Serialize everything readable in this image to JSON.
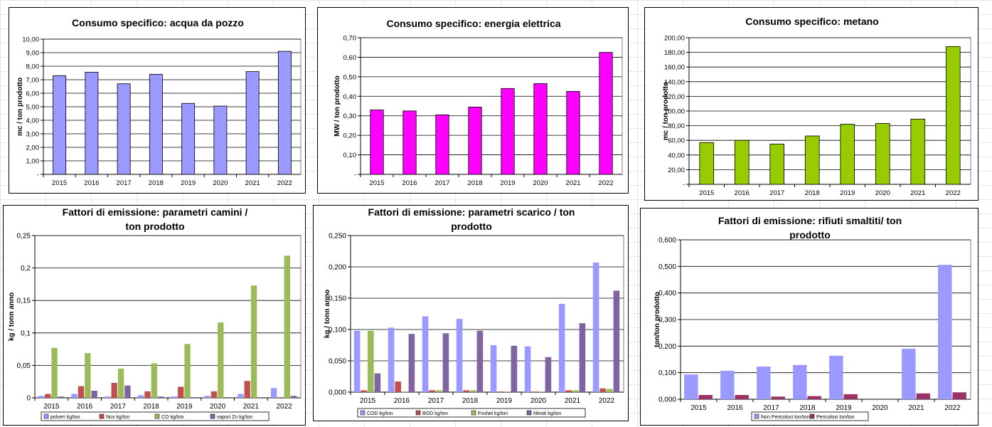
{
  "chart_data": [
    {
      "type": "bar",
      "title": [
        "Consumo specifico: acqua da pozzo"
      ],
      "ylabel": "mc / ton prodotto",
      "categories": [
        "2015",
        "2016",
        "2017",
        "2018",
        "2019",
        "2020",
        "2021",
        "2022"
      ],
      "ylim": [
        0,
        10
      ],
      "yticks": [
        0,
        1,
        2,
        3,
        4,
        5,
        6,
        7,
        8,
        9,
        10
      ],
      "ytick_labels": [
        "-",
        "1,00",
        "2,00",
        "3,00",
        "4,00",
        "5,00",
        "6,00",
        "7,00",
        "8,00",
        "9,00",
        "10,00"
      ],
      "grid": true,
      "series": [
        {
          "values": [
            7.3,
            7.55,
            6.7,
            7.4,
            5.25,
            5.05,
            7.6,
            9.1
          ],
          "color": "#9999ff"
        }
      ]
    },
    {
      "type": "bar",
      "title": [
        "Consumo specifico: energia elettrica"
      ],
      "ylabel": "MW / ton prodotto",
      "categories": [
        "2015",
        "2016",
        "2017",
        "2018",
        "2019",
        "2020",
        "2021",
        "2022"
      ],
      "ylim": [
        0,
        0.7
      ],
      "yticks": [
        0,
        0.1,
        0.2,
        0.3,
        0.4,
        0.5,
        0.6,
        0.7
      ],
      "ytick_labels": [
        "-",
        "0,10",
        "0,20",
        "0,30",
        "0,40",
        "0,50",
        "0,60",
        "0,70"
      ],
      "grid": true,
      "series": [
        {
          "values": [
            0.33,
            0.325,
            0.305,
            0.345,
            0.44,
            0.465,
            0.425,
            0.625
          ],
          "color": "#ff00ff"
        }
      ]
    },
    {
      "type": "bar",
      "title": [
        "Consumo specifico: metano"
      ],
      "ylabel": "mc / ton prodotto",
      "categories": [
        "2015",
        "2016",
        "2017",
        "2018",
        "2019",
        "2020",
        "2021",
        "2022"
      ],
      "ylim": [
        0,
        200
      ],
      "yticks": [
        0,
        20,
        40,
        60,
        80,
        100,
        120,
        140,
        160,
        180,
        200
      ],
      "ytick_labels": [
        "-",
        "20,00",
        "40,00",
        "60,00",
        "80,00",
        "100,00",
        "120,00",
        "140,00",
        "160,00",
        "180,00",
        "200,00"
      ],
      "grid": true,
      "series": [
        {
          "values": [
            57,
            60,
            55,
            66,
            82,
            83,
            89,
            188
          ],
          "color": "#99cc00"
        }
      ]
    },
    {
      "type": "bar",
      "title": [
        "Fattori di emissione: parametri camini /",
        "ton prodotto"
      ],
      "ylabel": "kg / tonn anno",
      "categories": [
        "2015",
        "2016",
        "2017",
        "2018",
        "2019",
        "2020",
        "2021",
        "2022"
      ],
      "ylim": [
        0,
        0.25
      ],
      "yticks": [
        0,
        0.05,
        0.1,
        0.15,
        0.2,
        0.25
      ],
      "ytick_labels": [
        "0",
        "0,05",
        "0,1",
        "0,15",
        "0,2",
        "0,25"
      ],
      "grid": true,
      "legend_position": "bottom",
      "series": [
        {
          "name": "polveri kg/ton",
          "values": [
            0.003,
            0.006,
            0.002,
            0.004,
            0.002,
            0.003,
            0.006,
            0.015
          ],
          "color": "#9999ff"
        },
        {
          "name": "Nox kg/ton",
          "values": [
            0.006,
            0.018,
            0.023,
            0.01,
            0.017,
            0.01,
            0.026,
            0.001
          ],
          "color": "#c0504d"
        },
        {
          "name": "CO kg/ton",
          "values": [
            0.077,
            0.069,
            0.045,
            0.053,
            0.083,
            0.116,
            0.173,
            0.219
          ],
          "color": "#9bbb59"
        },
        {
          "name": "vapori Zn kg/ton",
          "values": [
            0.002,
            0.011,
            0.019,
            0.002,
            0.001,
            0.001,
            0.001,
            0.003
          ],
          "color": "#8064a2"
        }
      ]
    },
    {
      "type": "bar",
      "title": [
        "Fattori di emissione: parametri scarico / ton",
        "prodotto"
      ],
      "ylabel": "kg / tonn anno",
      "categories": [
        "2015",
        "2016",
        "2017",
        "2018",
        "2019",
        "2020",
        "2021",
        "2022"
      ],
      "ylim": [
        0,
        0.25
      ],
      "yticks": [
        0,
        0.05,
        0.1,
        0.15,
        0.2,
        0.25
      ],
      "ytick_labels": [
        "0,000",
        "0,050",
        "0,100",
        "0,150",
        "0,200",
        "0,250"
      ],
      "grid": true,
      "legend_position": "bottom",
      "series": [
        {
          "name": "COD kg/ton",
          "values": [
            0.098,
            0.103,
            0.121,
            0.117,
            0.075,
            0.073,
            0.141,
            0.207
          ],
          "color": "#9999ff"
        },
        {
          "name": "BOD kg/ton",
          "values": [
            0.003,
            0.017,
            0.003,
            0.003,
            0.001,
            0.001,
            0.003,
            0.006
          ],
          "color": "#c0504d"
        },
        {
          "name": "Fosfati kg/ton",
          "values": [
            0.098,
            0.001,
            0.003,
            0.003,
            0.001,
            0.001,
            0.003,
            0.005
          ],
          "color": "#9bbb59"
        },
        {
          "name": "Nitrati kg/ton",
          "values": [
            0.03,
            0.093,
            0.094,
            0.098,
            0.074,
            0.056,
            0.11,
            0.162
          ],
          "color": "#8064a2"
        }
      ]
    },
    {
      "type": "bar",
      "title": [
        "Fattori di emissione: rifiuti smaltiti/ ton",
        "prodotto"
      ],
      "ylabel": "ton/ton prodotto",
      "categories": [
        "2015",
        "2016",
        "2017",
        "2018",
        "2019",
        "2020",
        "2021",
        "2022"
      ],
      "ylim": [
        0,
        0.6
      ],
      "yticks": [
        0,
        0.1,
        0.2,
        0.3,
        0.4,
        0.5,
        0.6
      ],
      "ytick_labels": [
        "0,000",
        "0,100",
        "0,200",
        "0,300",
        "0,400",
        "0,500",
        "0,600"
      ],
      "grid": true,
      "legend_position": "bottom",
      "series": [
        {
          "name": "Non Pericolosi ton/ton",
          "values": [
            0.093,
            0.107,
            0.123,
            0.129,
            0.164,
            0,
            0.19,
            0.506
          ],
          "color": "#9999ff"
        },
        {
          "name": "Pericolosi ton/ton",
          "values": [
            0.016,
            0.016,
            0.01,
            0.012,
            0.019,
            0,
            0.022,
            0.026
          ],
          "color": "#993366"
        }
      ]
    }
  ]
}
